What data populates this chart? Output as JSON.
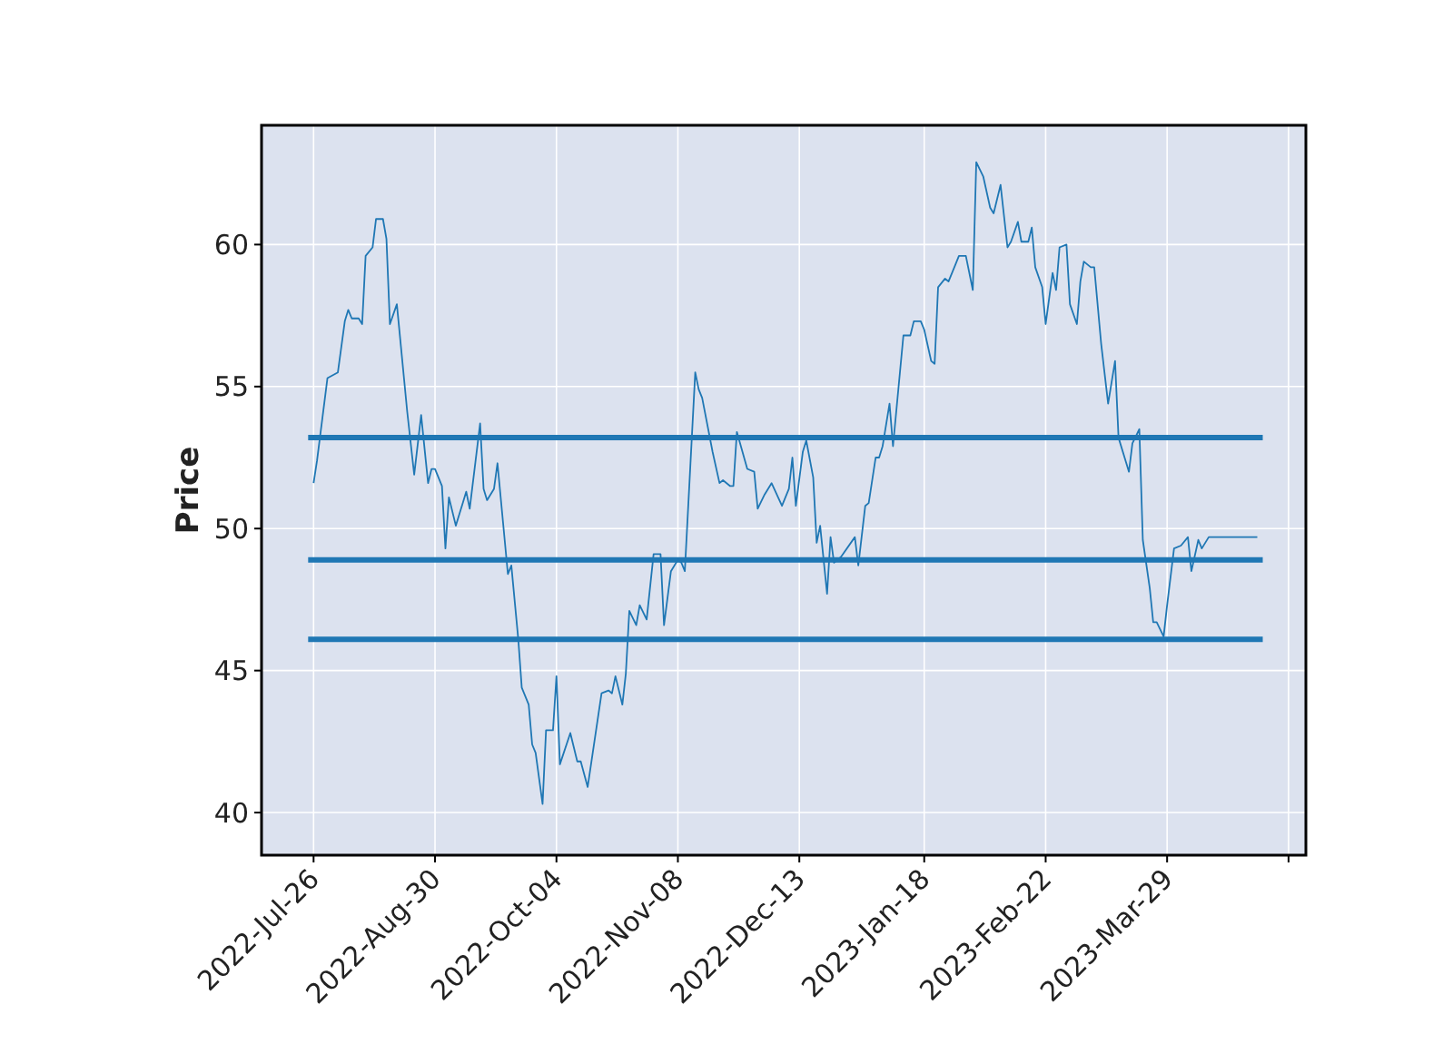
{
  "chart_data": {
    "type": "line",
    "ylabel": "Price",
    "xlim": [
      "2022-07-11",
      "2023-05-08"
    ],
    "ylim": [
      38.5,
      64.2
    ],
    "xticks": [
      {
        "value": "2022-07-26",
        "label": "2022-Jul-26"
      },
      {
        "value": "2022-08-30",
        "label": "2022-Aug-30"
      },
      {
        "value": "2022-10-04",
        "label": "2022-Oct-04"
      },
      {
        "value": "2022-11-08",
        "label": "2022-Nov-08"
      },
      {
        "value": "2022-12-13",
        "label": "2022-Dec-13"
      },
      {
        "value": "2023-01-18",
        "label": "2023-Jan-18"
      },
      {
        "value": "2023-02-22",
        "label": "2023-Feb-22"
      },
      {
        "value": "2023-03-29",
        "label": "2023-Mar-29"
      },
      {
        "value": "2023-05-03",
        "label": null
      }
    ],
    "yticks": [
      40,
      45,
      50,
      55,
      60
    ],
    "grid": true,
    "ref_lines": [
      {
        "axis": "y",
        "value": 53.2,
        "color": "#1f77b4"
      },
      {
        "axis": "y",
        "value": 48.9,
        "color": "#1f77b4"
      },
      {
        "axis": "y",
        "value": 46.1,
        "color": "#1f77b4"
      }
    ],
    "series": [
      {
        "color": "#1f77b4",
        "x": [
          "2022-07-26",
          "2022-07-27",
          "2022-07-30",
          "2022-08-02",
          "2022-08-04",
          "2022-08-05",
          "2022-08-06",
          "2022-08-08",
          "2022-08-09",
          "2022-08-10",
          "2022-08-12",
          "2022-08-13",
          "2022-08-15",
          "2022-08-16",
          "2022-08-17",
          "2022-08-19",
          "2022-08-22",
          "2022-08-24",
          "2022-08-26",
          "2022-08-28",
          "2022-08-29",
          "2022-08-30",
          "2022-09-01",
          "2022-09-02",
          "2022-09-03",
          "2022-09-05",
          "2022-09-08",
          "2022-09-09",
          "2022-09-12",
          "2022-09-13",
          "2022-09-14",
          "2022-09-16",
          "2022-09-17",
          "2022-09-20",
          "2022-09-21",
          "2022-09-23",
          "2022-09-24",
          "2022-09-26",
          "2022-09-27",
          "2022-09-28",
          "2022-09-30",
          "2022-10-01",
          "2022-10-03",
          "2022-10-04",
          "2022-10-05",
          "2022-10-08",
          "2022-10-10",
          "2022-10-11",
          "2022-10-13",
          "2022-10-17",
          "2022-10-19",
          "2022-10-20",
          "2022-10-21",
          "2022-10-23",
          "2022-10-24",
          "2022-10-25",
          "2022-10-27",
          "2022-10-28",
          "2022-10-30",
          "2022-11-01",
          "2022-11-03",
          "2022-11-04",
          "2022-11-06",
          "2022-11-08",
          "2022-11-09",
          "2022-11-10",
          "2022-11-13",
          "2022-11-14",
          "2022-11-15",
          "2022-11-18",
          "2022-11-20",
          "2022-11-21",
          "2022-11-23",
          "2022-11-24",
          "2022-11-25",
          "2022-11-28",
          "2022-11-30",
          "2022-12-01",
          "2022-12-03",
          "2022-12-05",
          "2022-12-08",
          "2022-12-10",
          "2022-12-11",
          "2022-12-12",
          "2022-12-14",
          "2022-12-15",
          "2022-12-17",
          "2022-12-18",
          "2022-12-19",
          "2022-12-21",
          "2022-12-22",
          "2022-12-23",
          "2022-12-25",
          "2022-12-29",
          "2022-12-30",
          "2023-01-01",
          "2023-01-02",
          "2023-01-04",
          "2023-01-05",
          "2023-01-06",
          "2023-01-08",
          "2023-01-09",
          "2023-01-12",
          "2023-01-14",
          "2023-01-15",
          "2023-01-17",
          "2023-01-18",
          "2023-01-20",
          "2023-01-21",
          "2023-01-22",
          "2023-01-24",
          "2023-01-25",
          "2023-01-27",
          "2023-01-28",
          "2023-01-30",
          "2023-02-01",
          "2023-02-02",
          "2023-02-04",
          "2023-02-06",
          "2023-02-07",
          "2023-02-09",
          "2023-02-11",
          "2023-02-12",
          "2023-02-14",
          "2023-02-15",
          "2023-02-17",
          "2023-02-18",
          "2023-02-19",
          "2023-02-21",
          "2023-02-22",
          "2023-02-24",
          "2023-02-25",
          "2023-02-26",
          "2023-02-28",
          "2023-03-01",
          "2023-03-03",
          "2023-03-04",
          "2023-03-05",
          "2023-03-07",
          "2023-03-08",
          "2023-03-10",
          "2023-03-12",
          "2023-03-14",
          "2023-03-15",
          "2023-03-18",
          "2023-03-19",
          "2023-03-21",
          "2023-03-22",
          "2023-03-24",
          "2023-03-25",
          "2023-03-26",
          "2023-03-28",
          "2023-03-29",
          "2023-03-31",
          "2023-04-02",
          "2023-04-04",
          "2023-04-05",
          "2023-04-07",
          "2023-04-08",
          "2023-04-10",
          "2023-04-12",
          "2023-04-24"
        ],
        "values": [
          51.6,
          52.4,
          55.3,
          55.5,
          57.3,
          57.7,
          57.4,
          57.4,
          57.2,
          59.6,
          59.9,
          60.9,
          60.9,
          60.2,
          57.2,
          57.9,
          54.1,
          51.9,
          54.0,
          51.6,
          52.1,
          52.1,
          51.5,
          49.3,
          51.1,
          50.1,
          51.3,
          50.7,
          53.7,
          51.4,
          51.0,
          51.4,
          52.3,
          48.4,
          48.7,
          46.1,
          44.4,
          43.8,
          42.4,
          42.1,
          40.3,
          42.9,
          42.9,
          44.8,
          41.7,
          42.8,
          41.8,
          41.8,
          40.9,
          44.2,
          44.3,
          44.2,
          44.8,
          43.8,
          44.9,
          47.1,
          46.6,
          47.3,
          46.8,
          49.1,
          49.1,
          46.6,
          48.5,
          48.9,
          48.8,
          48.5,
          55.5,
          54.9,
          54.6,
          52.7,
          51.6,
          51.7,
          51.5,
          51.5,
          53.4,
          52.1,
          52.0,
          50.7,
          51.2,
          51.6,
          50.8,
          51.4,
          52.5,
          50.8,
          52.7,
          53.1,
          51.8,
          49.5,
          50.1,
          47.7,
          49.7,
          48.8,
          49.0,
          49.7,
          48.7,
          50.8,
          50.9,
          52.5,
          52.5,
          52.9,
          54.4,
          52.9,
          56.8,
          56.8,
          57.3,
          57.3,
          57.0,
          55.9,
          55.8,
          58.5,
          58.8,
          58.7,
          59.3,
          59.6,
          59.6,
          58.4,
          62.9,
          62.4,
          61.3,
          61.1,
          62.1,
          59.9,
          60.1,
          60.8,
          60.1,
          60.1,
          60.6,
          59.2,
          58.5,
          57.2,
          59.0,
          58.4,
          59.9,
          60.0,
          57.9,
          57.2,
          58.7,
          59.4,
          59.2,
          59.2,
          56.5,
          54.4,
          55.9,
          53.2,
          52.0,
          53.0,
          53.5,
          49.6,
          47.9,
          46.7,
          46.7,
          46.2,
          47.3,
          49.3,
          49.4,
          49.7,
          48.5,
          49.6,
          49.3,
          49.7,
          49.7,
          49.7
        ]
      }
    ]
  }
}
